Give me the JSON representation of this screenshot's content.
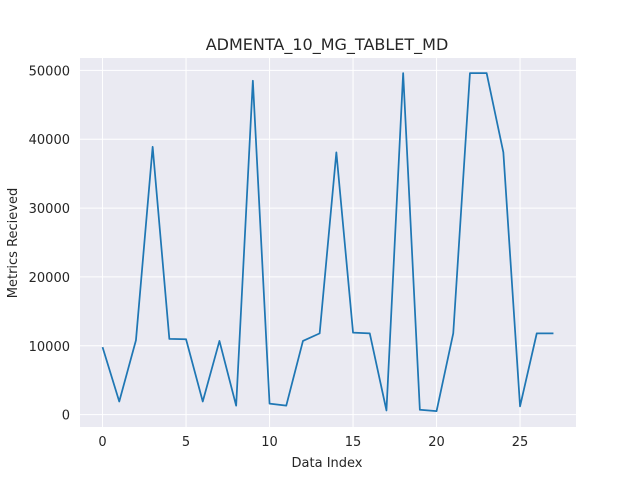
{
  "chart_data": {
    "type": "line",
    "title": "ADMENTA_10_MG_TABLET_MD",
    "xlabel": "Data Index",
    "ylabel": "Metrics Recieved",
    "xlim": [
      -1.35,
      28.35
    ],
    "ylim": [
      -1800,
      51800
    ],
    "xticks": [
      0,
      5,
      10,
      15,
      20,
      25
    ],
    "xtick_labels": [
      "0",
      "5",
      "10",
      "15",
      "20",
      "25"
    ],
    "yticks": [
      0,
      10000,
      20000,
      30000,
      40000,
      50000
    ],
    "ytick_labels": [
      "0",
      "10000",
      "20000",
      "30000",
      "40000",
      "50000"
    ],
    "grid": true,
    "legend": "none",
    "colors": {
      "line": "#1f77b4",
      "background": "#eaeaf2",
      "grid": "#ffffff"
    },
    "series": [
      {
        "x": [
          0,
          1,
          2,
          3,
          4,
          5,
          6,
          7,
          8,
          9,
          10,
          11,
          12,
          13,
          14,
          15,
          16,
          17,
          18,
          19,
          20,
          21,
          22,
          23,
          24,
          25,
          26,
          27
        ],
        "values": [
          9800,
          1900,
          10800,
          38900,
          11000,
          10950,
          1900,
          10700,
          1300,
          48500,
          1600,
          1300,
          10700,
          11800,
          38100,
          11900,
          11800,
          600,
          49600,
          700,
          500,
          11800,
          49600,
          49600,
          38100,
          1200,
          11800,
          11800
        ]
      }
    ]
  }
}
